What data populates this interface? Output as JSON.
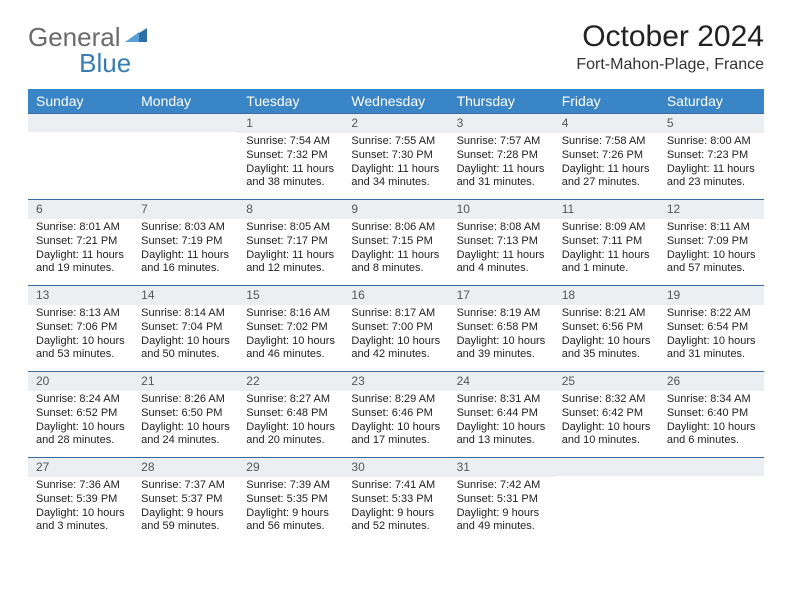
{
  "logo": {
    "general": "General",
    "blue": "Blue"
  },
  "title": "October 2024",
  "location": "Fort-Mahon-Plage, France",
  "colors": {
    "header_bg": "#3a85c6",
    "header_text": "#ffffff",
    "daynum_bg": "#eceff2",
    "row_border": "#3a6a9a",
    "logo_gray": "#6a6a6a",
    "logo_blue": "#3a7db5",
    "text": "#222222"
  },
  "weekdays": [
    "Sunday",
    "Monday",
    "Tuesday",
    "Wednesday",
    "Thursday",
    "Friday",
    "Saturday"
  ],
  "weeks": [
    [
      {
        "n": "",
        "sr": "",
        "ss": "",
        "dl": ""
      },
      {
        "n": "",
        "sr": "",
        "ss": "",
        "dl": ""
      },
      {
        "n": "1",
        "sr": "Sunrise: 7:54 AM",
        "ss": "Sunset: 7:32 PM",
        "dl": "Daylight: 11 hours and 38 minutes."
      },
      {
        "n": "2",
        "sr": "Sunrise: 7:55 AM",
        "ss": "Sunset: 7:30 PM",
        "dl": "Daylight: 11 hours and 34 minutes."
      },
      {
        "n": "3",
        "sr": "Sunrise: 7:57 AM",
        "ss": "Sunset: 7:28 PM",
        "dl": "Daylight: 11 hours and 31 minutes."
      },
      {
        "n": "4",
        "sr": "Sunrise: 7:58 AM",
        "ss": "Sunset: 7:26 PM",
        "dl": "Daylight: 11 hours and 27 minutes."
      },
      {
        "n": "5",
        "sr": "Sunrise: 8:00 AM",
        "ss": "Sunset: 7:23 PM",
        "dl": "Daylight: 11 hours and 23 minutes."
      }
    ],
    [
      {
        "n": "6",
        "sr": "Sunrise: 8:01 AM",
        "ss": "Sunset: 7:21 PM",
        "dl": "Daylight: 11 hours and 19 minutes."
      },
      {
        "n": "7",
        "sr": "Sunrise: 8:03 AM",
        "ss": "Sunset: 7:19 PM",
        "dl": "Daylight: 11 hours and 16 minutes."
      },
      {
        "n": "8",
        "sr": "Sunrise: 8:05 AM",
        "ss": "Sunset: 7:17 PM",
        "dl": "Daylight: 11 hours and 12 minutes."
      },
      {
        "n": "9",
        "sr": "Sunrise: 8:06 AM",
        "ss": "Sunset: 7:15 PM",
        "dl": "Daylight: 11 hours and 8 minutes."
      },
      {
        "n": "10",
        "sr": "Sunrise: 8:08 AM",
        "ss": "Sunset: 7:13 PM",
        "dl": "Daylight: 11 hours and 4 minutes."
      },
      {
        "n": "11",
        "sr": "Sunrise: 8:09 AM",
        "ss": "Sunset: 7:11 PM",
        "dl": "Daylight: 11 hours and 1 minute."
      },
      {
        "n": "12",
        "sr": "Sunrise: 8:11 AM",
        "ss": "Sunset: 7:09 PM",
        "dl": "Daylight: 10 hours and 57 minutes."
      }
    ],
    [
      {
        "n": "13",
        "sr": "Sunrise: 8:13 AM",
        "ss": "Sunset: 7:06 PM",
        "dl": "Daylight: 10 hours and 53 minutes."
      },
      {
        "n": "14",
        "sr": "Sunrise: 8:14 AM",
        "ss": "Sunset: 7:04 PM",
        "dl": "Daylight: 10 hours and 50 minutes."
      },
      {
        "n": "15",
        "sr": "Sunrise: 8:16 AM",
        "ss": "Sunset: 7:02 PM",
        "dl": "Daylight: 10 hours and 46 minutes."
      },
      {
        "n": "16",
        "sr": "Sunrise: 8:17 AM",
        "ss": "Sunset: 7:00 PM",
        "dl": "Daylight: 10 hours and 42 minutes."
      },
      {
        "n": "17",
        "sr": "Sunrise: 8:19 AM",
        "ss": "Sunset: 6:58 PM",
        "dl": "Daylight: 10 hours and 39 minutes."
      },
      {
        "n": "18",
        "sr": "Sunrise: 8:21 AM",
        "ss": "Sunset: 6:56 PM",
        "dl": "Daylight: 10 hours and 35 minutes."
      },
      {
        "n": "19",
        "sr": "Sunrise: 8:22 AM",
        "ss": "Sunset: 6:54 PM",
        "dl": "Daylight: 10 hours and 31 minutes."
      }
    ],
    [
      {
        "n": "20",
        "sr": "Sunrise: 8:24 AM",
        "ss": "Sunset: 6:52 PM",
        "dl": "Daylight: 10 hours and 28 minutes."
      },
      {
        "n": "21",
        "sr": "Sunrise: 8:26 AM",
        "ss": "Sunset: 6:50 PM",
        "dl": "Daylight: 10 hours and 24 minutes."
      },
      {
        "n": "22",
        "sr": "Sunrise: 8:27 AM",
        "ss": "Sunset: 6:48 PM",
        "dl": "Daylight: 10 hours and 20 minutes."
      },
      {
        "n": "23",
        "sr": "Sunrise: 8:29 AM",
        "ss": "Sunset: 6:46 PM",
        "dl": "Daylight: 10 hours and 17 minutes."
      },
      {
        "n": "24",
        "sr": "Sunrise: 8:31 AM",
        "ss": "Sunset: 6:44 PM",
        "dl": "Daylight: 10 hours and 13 minutes."
      },
      {
        "n": "25",
        "sr": "Sunrise: 8:32 AM",
        "ss": "Sunset: 6:42 PM",
        "dl": "Daylight: 10 hours and 10 minutes."
      },
      {
        "n": "26",
        "sr": "Sunrise: 8:34 AM",
        "ss": "Sunset: 6:40 PM",
        "dl": "Daylight: 10 hours and 6 minutes."
      }
    ],
    [
      {
        "n": "27",
        "sr": "Sunrise: 7:36 AM",
        "ss": "Sunset: 5:39 PM",
        "dl": "Daylight: 10 hours and 3 minutes."
      },
      {
        "n": "28",
        "sr": "Sunrise: 7:37 AM",
        "ss": "Sunset: 5:37 PM",
        "dl": "Daylight: 9 hours and 59 minutes."
      },
      {
        "n": "29",
        "sr": "Sunrise: 7:39 AM",
        "ss": "Sunset: 5:35 PM",
        "dl": "Daylight: 9 hours and 56 minutes."
      },
      {
        "n": "30",
        "sr": "Sunrise: 7:41 AM",
        "ss": "Sunset: 5:33 PM",
        "dl": "Daylight: 9 hours and 52 minutes."
      },
      {
        "n": "31",
        "sr": "Sunrise: 7:42 AM",
        "ss": "Sunset: 5:31 PM",
        "dl": "Daylight: 9 hours and 49 minutes."
      },
      {
        "n": "",
        "sr": "",
        "ss": "",
        "dl": ""
      },
      {
        "n": "",
        "sr": "",
        "ss": "",
        "dl": ""
      }
    ]
  ]
}
